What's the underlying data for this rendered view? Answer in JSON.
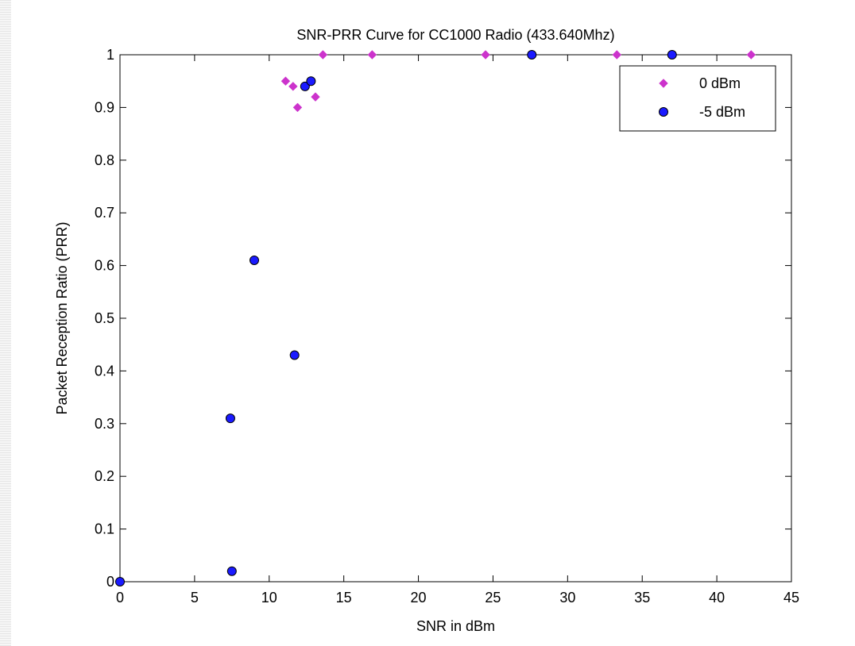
{
  "chart_data": {
    "type": "scatter",
    "title": "SNR-PRR Curve for CC1000 Radio (433.640Mhz)",
    "xlabel": "SNR in dBm",
    "ylabel": "Packet Reception Ratio (PRR)",
    "xlim": [
      0,
      45
    ],
    "ylim": [
      0,
      1
    ],
    "xticks": [
      0,
      5,
      10,
      15,
      20,
      25,
      30,
      35,
      40,
      45
    ],
    "yticks": [
      0,
      0.1,
      0.2,
      0.3,
      0.4,
      0.5,
      0.6,
      0.7,
      0.8,
      0.9,
      1
    ],
    "grid": false,
    "legend_position": "top-right",
    "series": [
      {
        "name": "0 dBm",
        "marker": "diamond",
        "color": "#cc33cc",
        "points": [
          [
            0,
            0
          ],
          [
            11.1,
            0.95
          ],
          [
            11.6,
            0.94
          ],
          [
            11.9,
            0.9
          ],
          [
            13.1,
            0.92
          ],
          [
            13.6,
            1.0
          ],
          [
            16.9,
            1.0
          ],
          [
            24.5,
            1.0
          ],
          [
            27.6,
            1.0
          ],
          [
            33.3,
            1.0
          ],
          [
            37.0,
            1.0
          ],
          [
            42.3,
            1.0
          ]
        ]
      },
      {
        "name": "-5 dBm",
        "marker": "circle",
        "color": "#1a1aff",
        "points": [
          [
            0,
            0
          ],
          [
            7.4,
            0.31
          ],
          [
            7.5,
            0.02
          ],
          [
            9.0,
            0.61
          ],
          [
            11.7,
            0.43
          ],
          [
            12.4,
            0.94
          ],
          [
            12.8,
            0.95
          ],
          [
            27.6,
            1.0
          ],
          [
            37.0,
            1.0
          ]
        ]
      }
    ]
  }
}
